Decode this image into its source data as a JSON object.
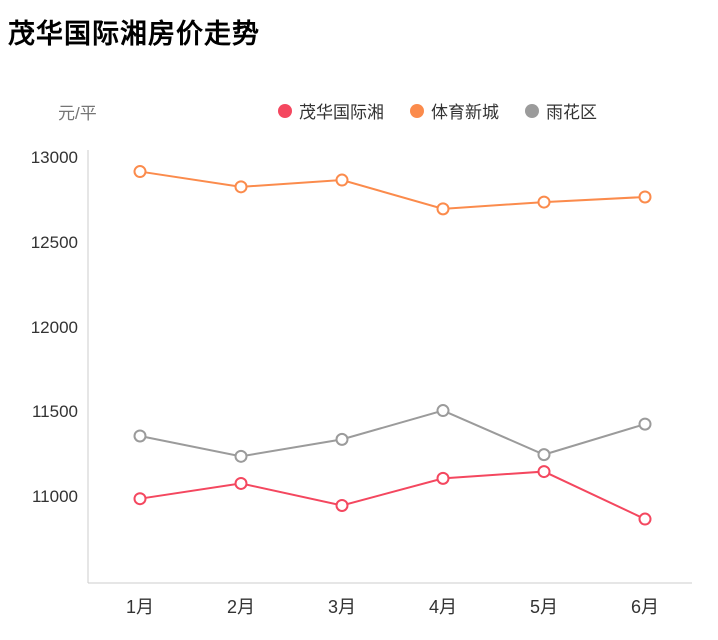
{
  "title": "茂华国际湘房价走势",
  "y_unit": "元/平",
  "chart_data": {
    "type": "line",
    "title": "茂华国际湘房价走势",
    "ylabel": "元/平",
    "xlabel": "",
    "categories": [
      "1月",
      "2月",
      "3月",
      "4月",
      "5月",
      "6月"
    ],
    "series": [
      {
        "name": "茂华国际湘",
        "color": "#f4475f",
        "values": [
          10990,
          11080,
          10950,
          11110,
          11150,
          10870
        ]
      },
      {
        "name": "体育新城",
        "color": "#fb8b4c",
        "values": [
          12920,
          12830,
          12870,
          12700,
          12740,
          12770
        ]
      },
      {
        "name": "雨花区",
        "color": "#9b9b9b",
        "values": [
          11360,
          11240,
          11340,
          11510,
          11250,
          11430
        ]
      }
    ],
    "yticks": [
      11000,
      11500,
      12000,
      12500,
      13000
    ],
    "ylim": [
      10490,
      13000
    ],
    "grid": false,
    "legend_position": "top",
    "marker_style": "hollow-circle",
    "axis_color": "#cccccc"
  }
}
